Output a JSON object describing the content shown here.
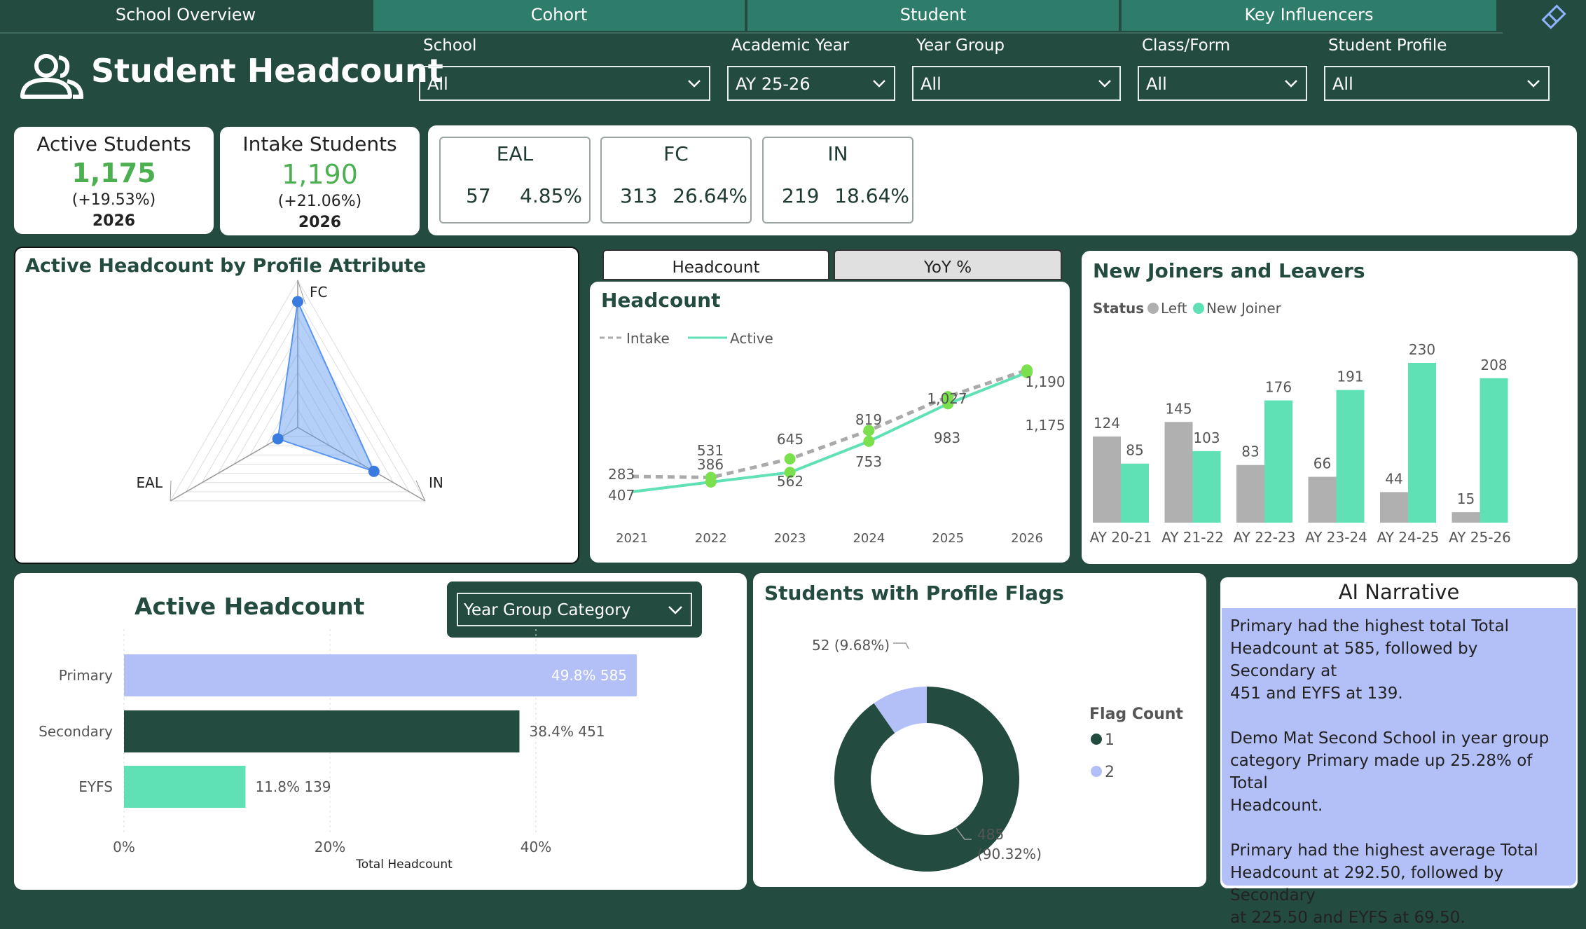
{
  "tabs": [
    {
      "label": "School Overview"
    },
    {
      "label": "Cohort"
    },
    {
      "label": "Student"
    },
    {
      "label": "Key Influencers"
    }
  ],
  "page_title": "Student Headcount",
  "filters": [
    {
      "label": "School",
      "value": "All"
    },
    {
      "label": "Academic Year",
      "value": "AY 25-26"
    },
    {
      "label": "Year Group",
      "value": "All"
    },
    {
      "label": "Class/Form",
      "value": "All"
    },
    {
      "label": "Student Profile",
      "value": "All"
    }
  ],
  "kpis": {
    "active": {
      "title": "Active Students",
      "value": "1,175",
      "change": "(+19.53%)",
      "year": "2026"
    },
    "intake": {
      "title": "Intake Students",
      "value": "1,190",
      "change": "(+21.06%)",
      "year": "2026"
    }
  },
  "profile_cards": [
    {
      "title": "EAL",
      "count": "57",
      "pct": "4.85%"
    },
    {
      "title": "FC",
      "count": "313",
      "pct": "26.64%"
    },
    {
      "title": "IN",
      "count": "219",
      "pct": "18.64%"
    }
  ],
  "radar": {
    "title": "Active Headcount by Profile Attribute",
    "chart_data": {
      "type": "radar",
      "axes": [
        "FC",
        "IN",
        "EAL"
      ],
      "values": [
        313,
        219,
        57
      ]
    }
  },
  "headcount_toggle": {
    "tab1": "Headcount",
    "tab2": "YoY %"
  },
  "headcount_chart": {
    "title": "Headcount",
    "legend": {
      "intake": "Intake",
      "active": "Active"
    },
    "chart_data": {
      "type": "line",
      "x": [
        "2021",
        "2022",
        "2023",
        "2024",
        "2025",
        "2026"
      ],
      "series": [
        {
          "name": "Intake",
          "values": [
            283,
            531,
            645,
            819,
            1027,
            1190
          ],
          "labels": [
            "283",
            "531",
            "645",
            "819",
            "1,027",
            "1,190"
          ]
        },
        {
          "name": "Active",
          "values": [
            407,
            386,
            562,
            753,
            983,
            1175
          ],
          "labels": [
            "407",
            "386",
            "562",
            "753",
            "983",
            "1,175"
          ]
        }
      ]
    }
  },
  "joiners_chart": {
    "title": "New Joiners and Leavers",
    "legend_title": "Status",
    "legend": {
      "left": "Left",
      "joiner": "New Joiner"
    },
    "chart_data": {
      "type": "bar",
      "categories": [
        "AY 20-21",
        "AY 21-22",
        "AY 22-23",
        "AY 23-24",
        "AY 24-25",
        "AY 25-26"
      ],
      "series": [
        {
          "name": "Left",
          "values": [
            124,
            145,
            83,
            66,
            44,
            15
          ]
        },
        {
          "name": "New Joiner",
          "values": [
            85,
            103,
            176,
            191,
            230,
            208
          ]
        }
      ]
    }
  },
  "active_headcount": {
    "title": "Active Headcount",
    "dropdown": "Year Group Category",
    "chart_data": {
      "type": "bar",
      "orientation": "horizontal",
      "categories": [
        "Primary",
        "Secondary",
        "EYFS"
      ],
      "values": [
        585,
        451,
        139
      ],
      "percents": [
        49.8,
        38.4,
        11.8
      ],
      "labels": [
        "49.8% 585",
        "38.4% 451",
        "11.8% 139"
      ],
      "xticks": [
        "0%",
        "20%",
        "40%"
      ],
      "xlabel": "Total Headcount"
    }
  },
  "flags_chart": {
    "title": "Students with Profile Flags",
    "legend_title": "Flag Count",
    "chart_data": {
      "type": "pie",
      "slices": [
        {
          "name": "1",
          "value": 485,
          "label_a": "485",
          "label_b": "(90.32%)"
        },
        {
          "name": "2",
          "value": 52,
          "label_a": "52 (9.68%)",
          "label_b": ""
        }
      ]
    }
  },
  "narrative": {
    "title": "AI Narrative",
    "lines": [
      "Primary had the highest total Total",
      "Headcount at 585, followed by Secondary at",
      "451 and EYFS at 139.",
      "",
      "Demo Mat Second School in year group",
      "category Primary made up 25.28% of Total",
      "Headcount.",
      "",
      "Primary had the highest average Total",
      "Headcount at 292.50, followed by Secondary",
      "at 225.50 and EYFS at 69.50."
    ]
  },
  "colors": {
    "bg": "#234b3f",
    "teal": "#5fe0b5",
    "gray": "#b0b0b0",
    "periwinkle": "#b3bff7",
    "dark": "#234b3f",
    "green": "#4caf50",
    "blue": "#3a7be0"
  }
}
